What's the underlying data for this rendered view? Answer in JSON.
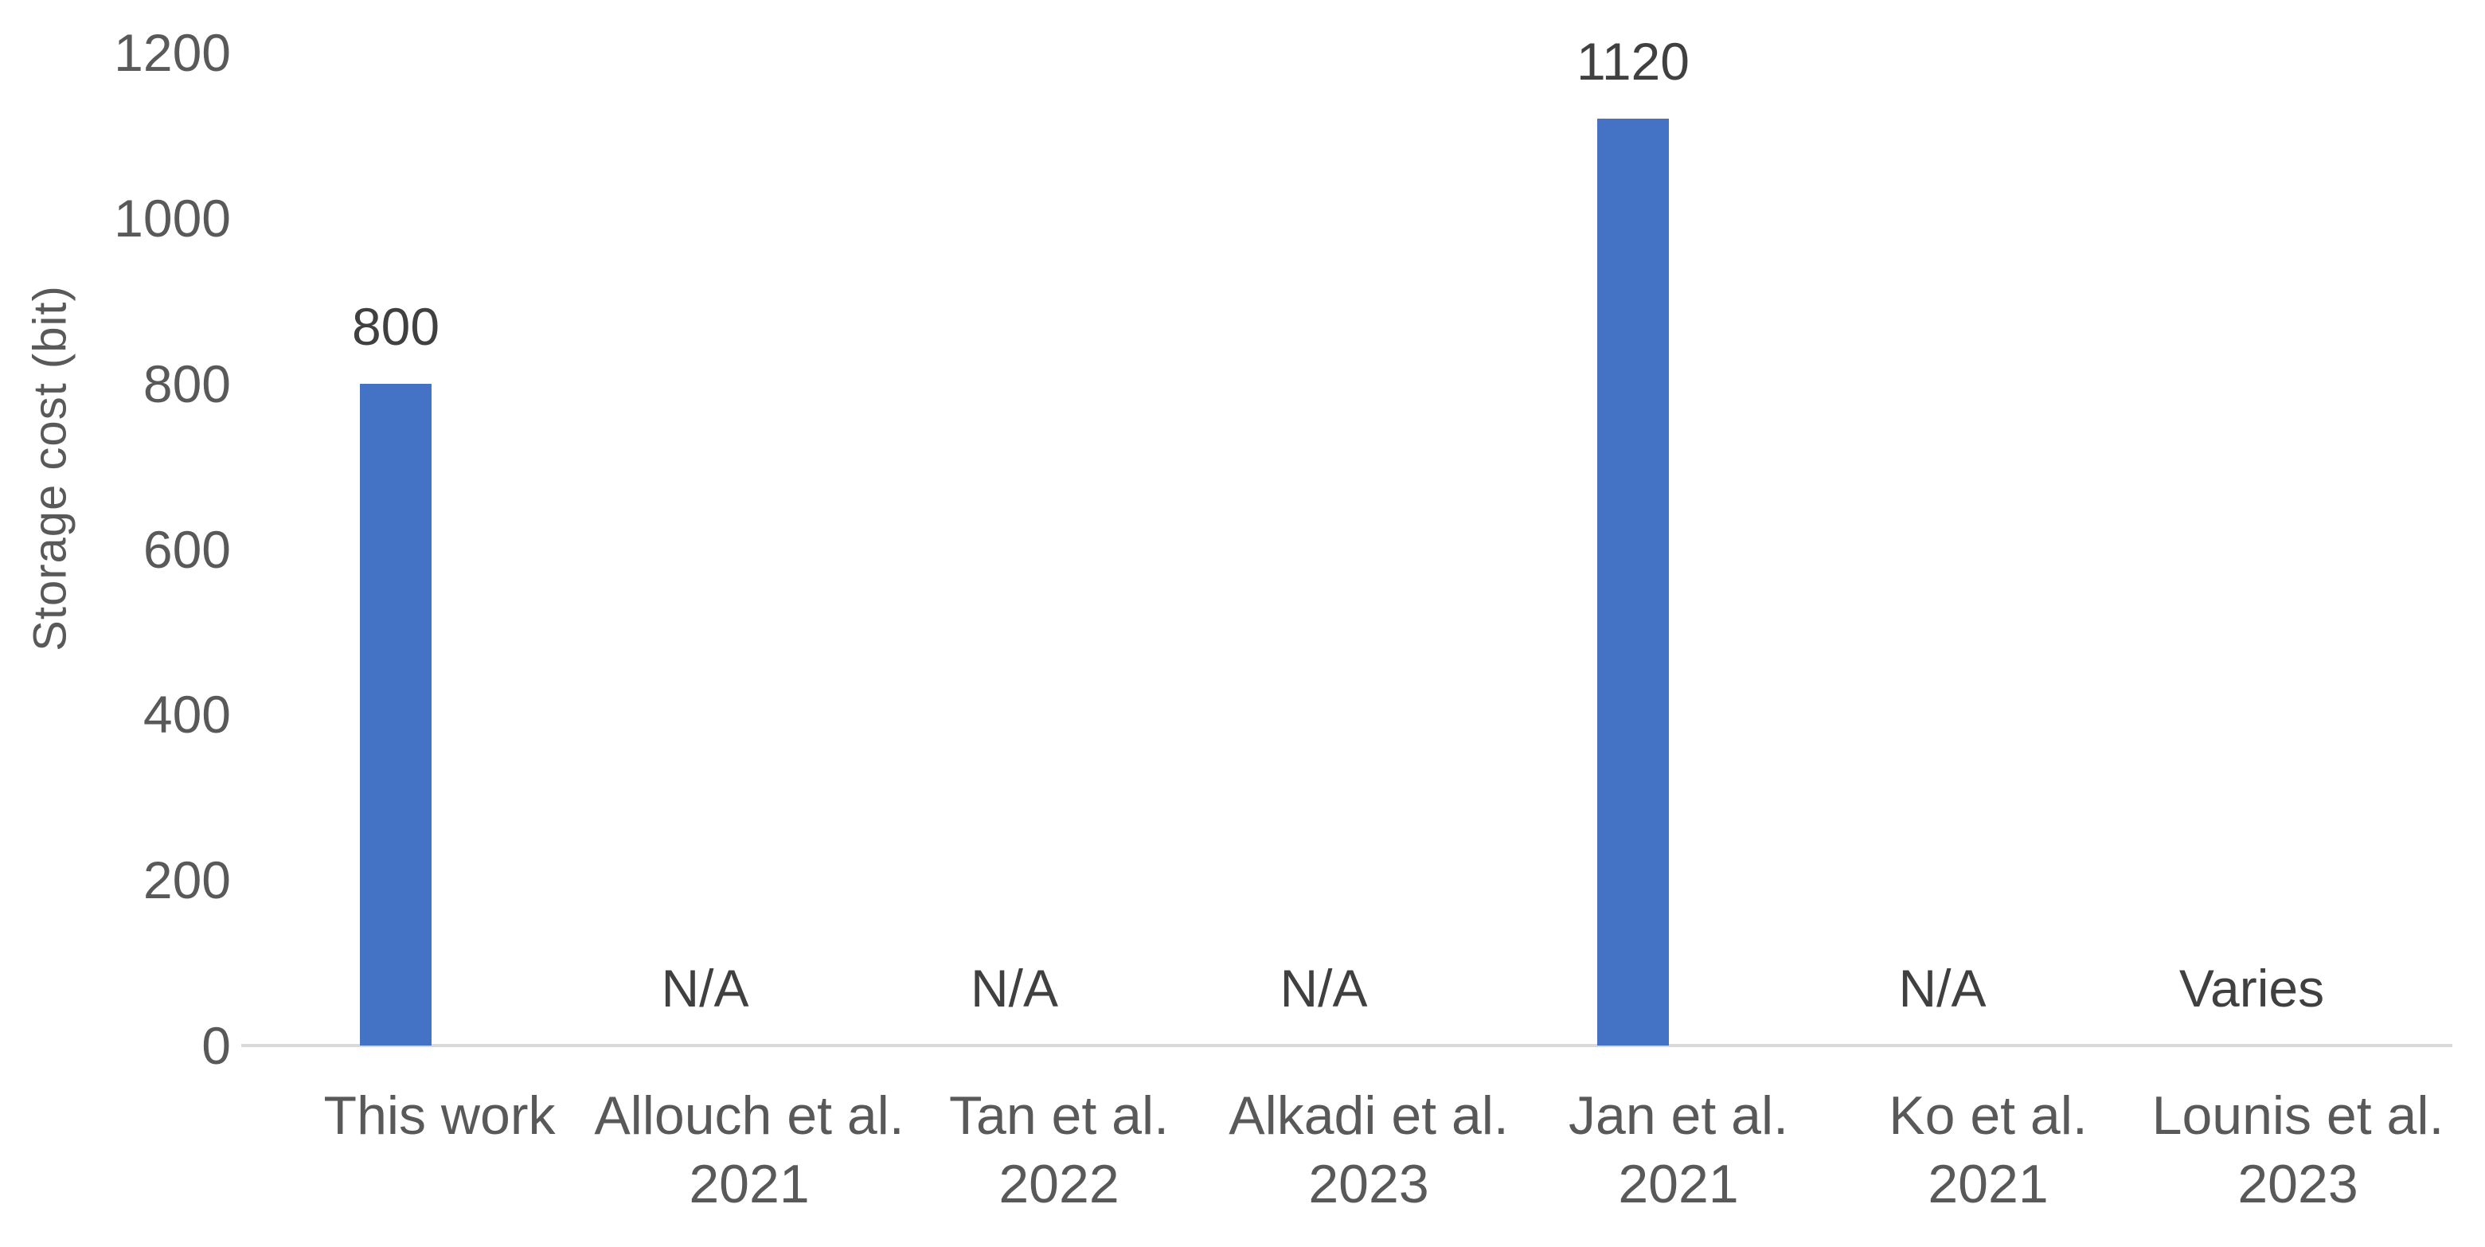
{
  "chart_data": {
    "type": "bar",
    "title": "",
    "xlabel": "",
    "ylabel": "Storage cost (bit)",
    "ylim": [
      0,
      1200
    ],
    "yticks": [
      0,
      200,
      400,
      600,
      800,
      1000,
      1200
    ],
    "grid": false,
    "legend": false,
    "categories": [
      "This work",
      "Allouch et al.\n2021",
      "Tan et al.\n2022",
      "Alkadi et al.\n2023",
      "Jan et al.\n2021",
      "Ko et al.\n2021",
      "Lounis et al.\n2023"
    ],
    "values": [
      800,
      null,
      null,
      null,
      1120,
      null,
      null
    ],
    "value_labels": [
      "800",
      "N/A",
      "N/A",
      "N/A",
      "1120",
      "N/A",
      "Varies"
    ],
    "colors": {
      "bar": "#4472C4",
      "axis_line": "#D9D9D9",
      "axis_text": "#595959",
      "data_label_text": "#404040",
      "background": "#FFFFFF"
    }
  }
}
